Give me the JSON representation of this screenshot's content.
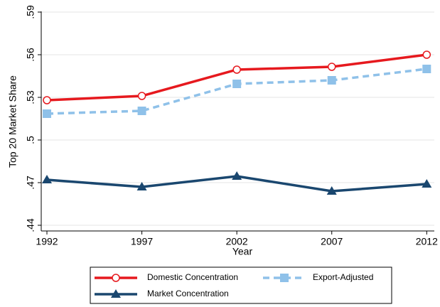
{
  "chart_data": {
    "type": "line",
    "x_label": "Year",
    "y_label": "Top 20 Market Share",
    "x": [
      1992,
      1997,
      2002,
      2007,
      2012
    ],
    "series": [
      {
        "name": "Domestic Concentration",
        "color": "#e6191e",
        "marker": "circle",
        "dash": false,
        "values": [
          0.528,
          0.531,
          0.5495,
          0.5515,
          0.56
        ]
      },
      {
        "name": "Export-Adjusted",
        "color": "#8fc1e9",
        "marker": "square",
        "dash": true,
        "values": [
          0.5185,
          0.5205,
          0.5395,
          0.542,
          0.55
        ]
      },
      {
        "name": "Market Concentration",
        "color": "#1a476f",
        "marker": "triangle",
        "dash": false,
        "values": [
          0.472,
          0.467,
          0.4745,
          0.464,
          0.469
        ]
      }
    ],
    "xlim": [
      1991.7,
      2012.4
    ],
    "xticks": [
      1992,
      1997,
      2002,
      2007,
      2012
    ],
    "ylim": [
      0.436,
      0.59
    ],
    "yticks": [
      {
        "value": 0.44,
        "label": ".44"
      },
      {
        "value": 0.47,
        "label": ".47"
      },
      {
        "value": 0.5,
        "label": ".5"
      },
      {
        "value": 0.53,
        "label": ".53"
      },
      {
        "value": 0.56,
        "label": ".56"
      },
      {
        "value": 0.59,
        "label": ".59"
      }
    ],
    "grid": true
  }
}
